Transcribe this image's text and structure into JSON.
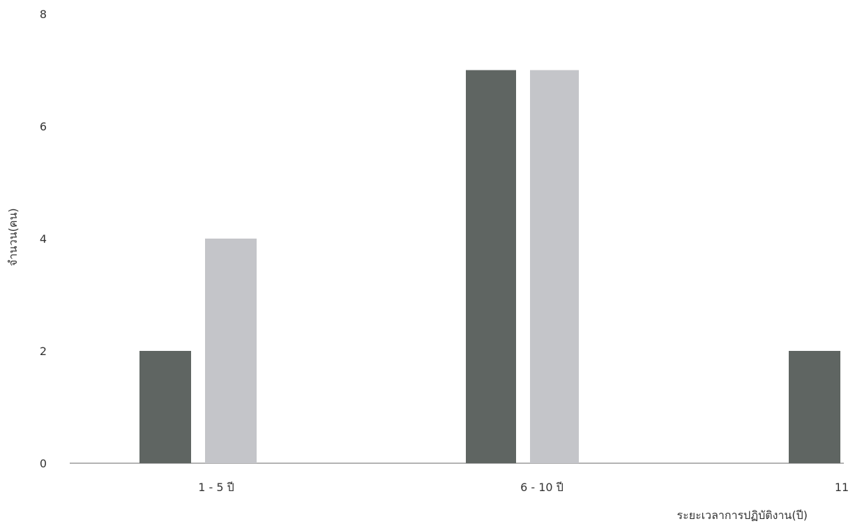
{
  "chart_data": {
    "type": "bar",
    "title": "",
    "xlabel": "ระยะเวลาการปฏิบัติงาน(ปี)",
    "ylabel": "จำนวน(คน)",
    "categories": [
      "1 - 5 ปี",
      "6 - 10 ปี",
      "11"
    ],
    "series": [
      {
        "values": [
          2,
          7,
          2
        ],
        "color": "#5f6562"
      },
      {
        "values": [
          4,
          7,
          0
        ],
        "color": "#c4c5c9"
      }
    ],
    "ylim": [
      0,
      8
    ],
    "yticks": [
      0,
      2,
      4,
      6,
      8
    ],
    "grid": false,
    "legend": "none"
  }
}
